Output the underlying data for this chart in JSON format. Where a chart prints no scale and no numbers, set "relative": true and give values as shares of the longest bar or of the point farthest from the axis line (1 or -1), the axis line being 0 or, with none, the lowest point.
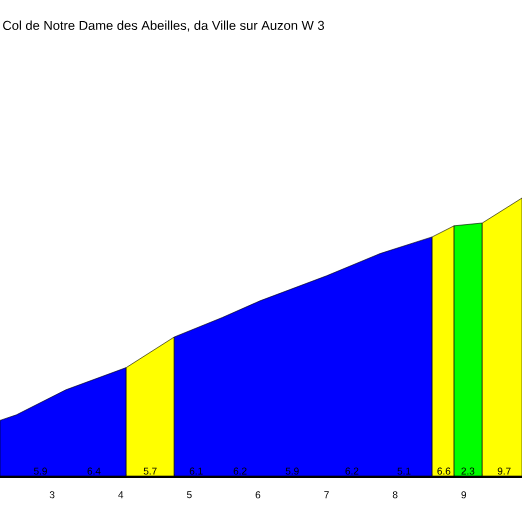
{
  "chart_data": {
    "type": "area",
    "title": "Col de Notre Dame des Abeilles, da Ville sur Auzon W 3",
    "relative": true,
    "xlim": [
      2.24,
      9.85
    ],
    "xticks": [
      3,
      4,
      5,
      6,
      7,
      8,
      9
    ],
    "grid": false,
    "series": [
      {
        "color": "#0000ff",
        "x": [
          2.24,
          2.48,
          3.2,
          4.08
        ],
        "values": [
          0.2,
          0.22,
          0.31,
          0.39
        ]
      },
      {
        "color": "#ffff00",
        "x": [
          4.08,
          4.78
        ],
        "values": [
          0.39,
          0.5
        ]
      },
      {
        "color": "#0000ff",
        "x": [
          4.78,
          5.48,
          6.03,
          7.0,
          7.78,
          8.54
        ],
        "values": [
          0.5,
          0.57,
          0.63,
          0.72,
          0.8,
          0.86
        ]
      },
      {
        "color": "#ffff00",
        "x": [
          8.54,
          8.86
        ],
        "values": [
          0.86,
          0.9
        ]
      },
      {
        "color": "#00ff00",
        "x": [
          8.86,
          9.27
        ],
        "values": [
          0.9,
          0.91
        ]
      },
      {
        "color": "#ffff00",
        "x": [
          9.27,
          9.85
        ],
        "values": [
          0.91,
          1.0
        ]
      }
    ],
    "annotations": [
      {
        "text": "5.9",
        "x": 2.83,
        "y": 0
      },
      {
        "text": "6.4",
        "x": 3.61,
        "y": 0
      },
      {
        "text": "5.7",
        "x": 4.43,
        "y": 0
      },
      {
        "text": "6.1",
        "x": 5.1,
        "y": 0
      },
      {
        "text": "6.2",
        "x": 5.74,
        "y": 0
      },
      {
        "text": "5.9",
        "x": 6.5,
        "y": 0
      },
      {
        "text": "6.2",
        "x": 7.37,
        "y": 0
      },
      {
        "text": "5.1",
        "x": 8.13,
        "y": 0
      },
      {
        "text": "6.6",
        "x": 8.71,
        "y": 0
      },
      {
        "text": "2.3",
        "x": 9.06,
        "y": 0
      },
      {
        "text": "9.7",
        "x": 9.59,
        "y": 0
      }
    ]
  }
}
